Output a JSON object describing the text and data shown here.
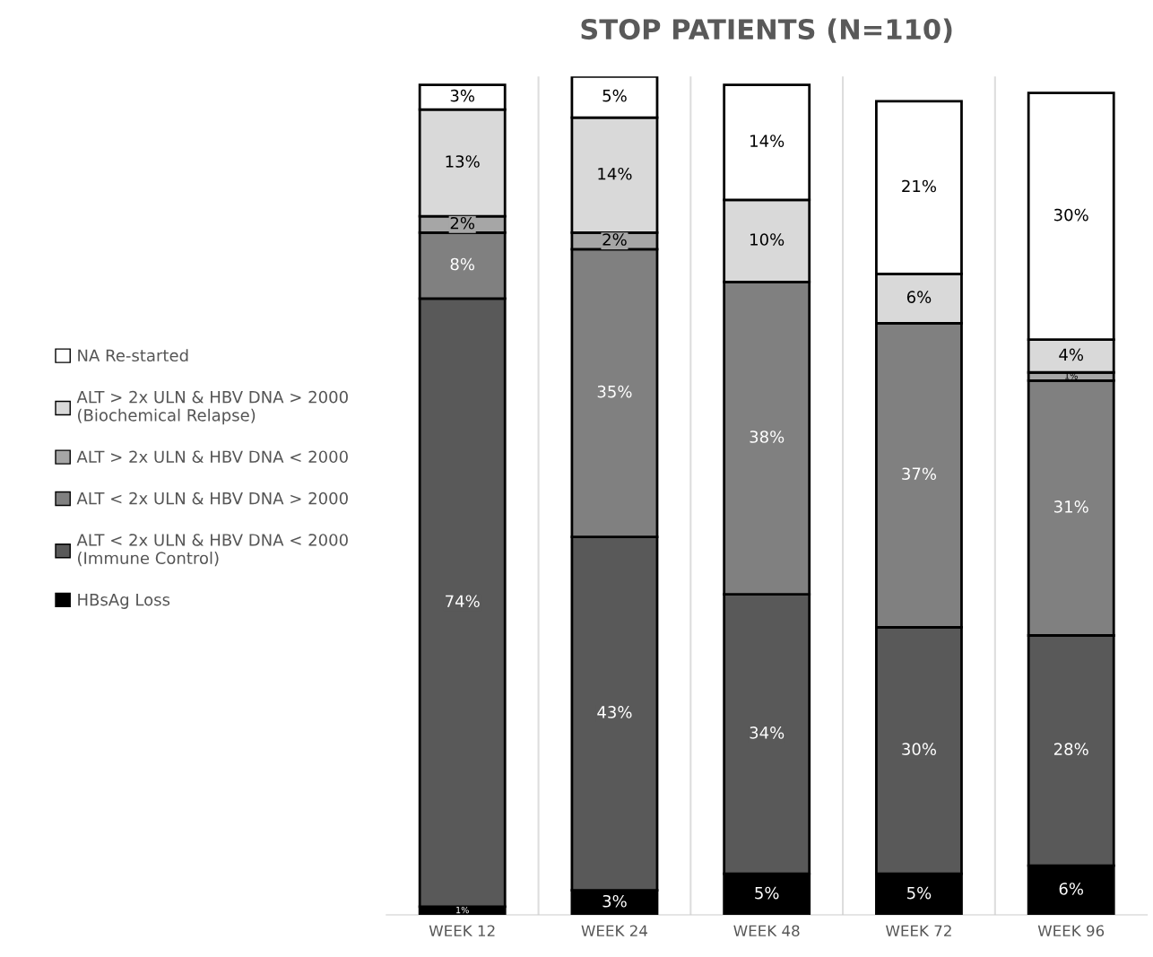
{
  "chart_data": {
    "type": "bar",
    "title": "STOP PATIENTS (N=110)",
    "stacked": true,
    "data_labels": true,
    "legend": "left",
    "grid": "x",
    "categories": [
      "WEEK 12",
      "WEEK 24",
      "WEEK 48",
      "WEEK 72",
      "WEEK 96"
    ],
    "series": [
      {
        "name": "HBsAg Loss",
        "color": "#000000",
        "values": [
          1,
          3,
          5,
          5,
          6
        ],
        "value_labels": [
          "1%",
          "3%",
          "5%",
          "5%",
          "6%"
        ]
      },
      {
        "name": "ALT < 2x ULN & HBV DNA < 2000\n(Immune Control)",
        "color": "#595959",
        "values": [
          74,
          43,
          34,
          30,
          28
        ],
        "value_labels": [
          "74%",
          "43%",
          "34%",
          "30%",
          "28%"
        ]
      },
      {
        "name": "ALT < 2x ULN & HBV DNA > 2000",
        "color": "#808080",
        "values": [
          8,
          35,
          38,
          37,
          31
        ],
        "value_labels": [
          "8%",
          "35%",
          "38%",
          "37%",
          "31%"
        ]
      },
      {
        "name": "ALT > 2x ULN & HBV DNA < 2000",
        "color": "#a6a6a6",
        "values": [
          2,
          2,
          null,
          null,
          1
        ],
        "value_labels": [
          "2%",
          "2%",
          null,
          null,
          "1%"
        ]
      },
      {
        "name": "ALT > 2x ULN & HBV DNA > 2000\n(Biochemical Relapse)",
        "color": "#d9d9d9",
        "values": [
          13,
          14,
          10,
          6,
          4
        ],
        "value_labels": [
          "13%",
          "14%",
          "10%",
          "6%",
          "4%"
        ]
      },
      {
        "name": "NA Re-started",
        "color": "#ffffff",
        "values": [
          3,
          5,
          14,
          21,
          30
        ],
        "value_labels": [
          "3%",
          "5%",
          "14%",
          "21%",
          "30%"
        ]
      }
    ]
  }
}
